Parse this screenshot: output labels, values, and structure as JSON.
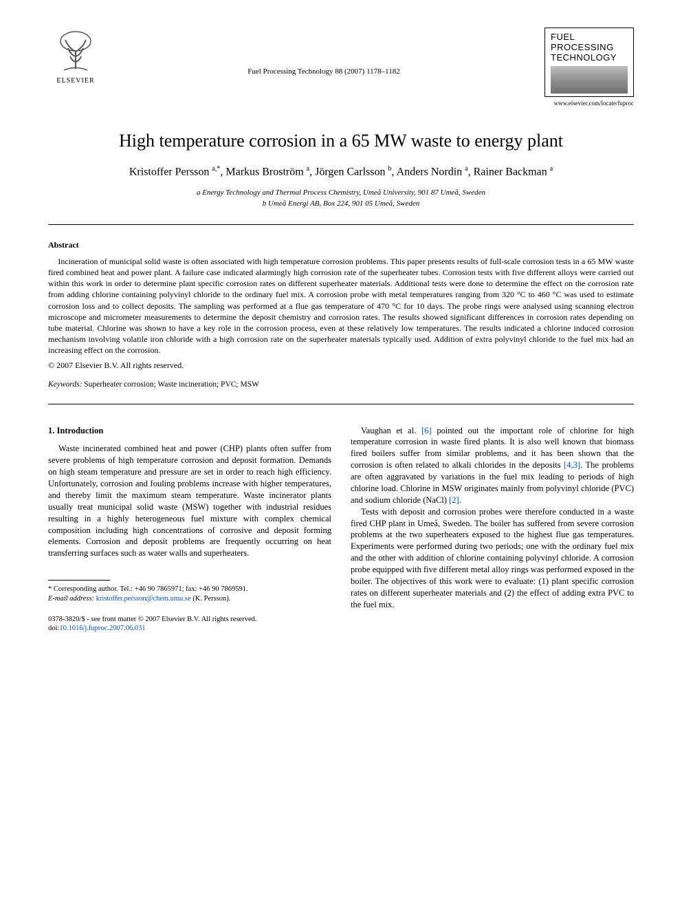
{
  "header": {
    "publisher_name": "ELSEVIER",
    "journal_ref": "Fuel Processing Technology 88 (2007) 1178–1182",
    "journal_logo_line1": "FUEL",
    "journal_logo_line2": "PROCESSING",
    "journal_logo_line3": "TECHNOLOGY",
    "journal_url": "www.elsevier.com/locate/fuproc"
  },
  "title": "High temperature corrosion in a 65 MW waste to energy plant",
  "authors_html": "Kristoffer Persson <sup>a,*</sup>, Markus Broström <sup>a</sup>, Jörgen Carlsson <sup>b</sup>, Anders Nordin <sup>a</sup>, Rainer Backman <sup>a</sup>",
  "affiliations": {
    "a": "a Energy Technology and Thermal Process Chemistry, Umeå University, 901 87 Umeå, Sweden",
    "b": "b Umeå Energi AB, Box 224, 901 05 Umeå, Sweden"
  },
  "abstract": {
    "heading": "Abstract",
    "body": "Incineration of municipal solid waste is often associated with high temperature corrosion problems. This paper presents results of full-scale corrosion tests in a 65 MW waste fired combined heat and power plant. A failure case indicated alarmingly high corrosion rate of the superheater tubes. Corrosion tests with five different alloys were carried out within this work in order to determine plant specific corrosion rates on different superheater materials. Additional tests were done to determine the effect on the corrosion rate from adding chlorine containing polyvinyl chloride to the ordinary fuel mix. A corrosion probe with metal temperatures ranging from 320 °C to 460 °C was used to estimate corrosion loss and to collect deposits. The sampling was performed at a flue gas temperature of 470 °C for 10 days. The probe rings were analysed using scanning electron microscope and micrometer measurements to determine the deposit chemistry and corrosion rates. The results showed significant differences in corrosion rates depending on tube material. Chlorine was shown to have a key role in the corrosion process, even at these relatively low temperatures. The results indicated a chlorine induced corrosion mechanism involving volatile iron chloride with a high corrosion rate on the superheater materials typically used. Addition of extra polyvinyl chloride to the fuel mix had an increasing effect on the corrosion.",
    "copyright": "© 2007 Elsevier B.V. All rights reserved."
  },
  "keywords": {
    "label": "Keywords:",
    "value": "Superheater corrosion; Waste incineration; PVC; MSW"
  },
  "section1": {
    "heading": "1. Introduction",
    "p1": "Waste incinerated combined heat and power (CHP) plants often suffer from severe problems of high temperature corrosion and deposit formation. Demands on high steam temperature and pressure are set in order to reach high efficiency. Unfortunately, corrosion and fouling problems increase with higher temperatures, and thereby limit the maximum steam temperature. Waste incinerator plants usually treat municipal solid waste (MSW) together with industrial residues resulting in a highly heterogeneous fuel mixture with complex chemical composition including high concentrations of corrosive and deposit forming elements. Corrosion and deposit problems are frequently occurring on heat transferring surfaces such as water walls and superheaters.",
    "p2_pre": "Vaughan et al. ",
    "p2_ref1": "[6]",
    "p2_mid1": " pointed out the important role of chlorine for high temperature corrosion in waste fired plants. It is also well known that biomass fired boilers suffer from similar problems, and it has been shown that the corrosion is often related to alkali chlorides in the deposits ",
    "p2_ref2": "[4,3]",
    "p2_mid2": ". The problems are often aggravated by variations in the fuel mix leading to periods of high chlorine load. Chlorine in MSW originates mainly from polyvinyl chloride (PVC) and sodium chloride (NaCl) ",
    "p2_ref3": "[2]",
    "p2_end": ".",
    "p3": "Tests with deposit and corrosion probes were therefore conducted in a waste fired CHP plant in Umeå, Sweden. The boiler has suffered from severe corrosion problems at the two superheaters exposed to the highest flue gas temperatures. Experiments were performed during two periods; one with the ordinary fuel mix and the other with addition of chlorine containing polyvinyl chloride. A corrosion probe equipped with five different metal alloy rings was performed exposed in the boiler. The objectives of this work were to evaluate: (1) plant specific corrosion rates on different superheater materials and (2) the effect of adding extra PVC to the fuel mix."
  },
  "footnote": {
    "corr": "* Corresponding author. Tel.: +46 90 7865971; fax: +46 90 7869591.",
    "email_label": "E-mail address:",
    "email": "kristoffer.persson@chem.umu.se",
    "email_tail": "(K. Persson)."
  },
  "bottom": {
    "issn": "0378-3820/$ - see front matter © 2007 Elsevier B.V. All rights reserved.",
    "doi_label": "doi:",
    "doi": "10.1016/j.fuproc.2007.06.031"
  },
  "colors": {
    "link": "#0050c8",
    "text": "#000000",
    "background": "#ffffff"
  }
}
